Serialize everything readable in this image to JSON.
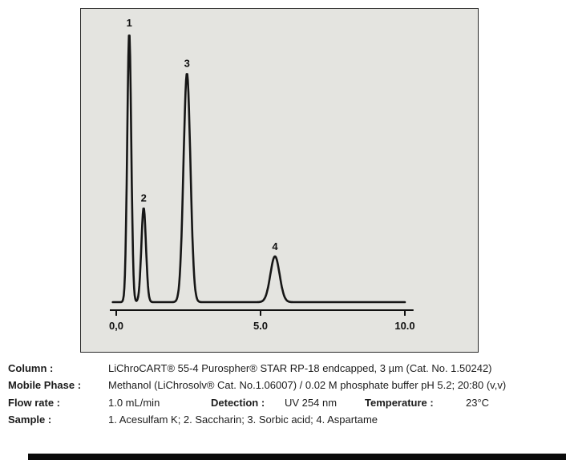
{
  "chart_data": {
    "type": "line",
    "title": "",
    "xlabel": "",
    "ylabel": "",
    "grid": false,
    "legend": false,
    "xlim": [
      0,
      10.3
    ],
    "ylim_relative": [
      0,
      1.05
    ],
    "x_ticks": [
      {
        "value": 0,
        "label": "0,0"
      },
      {
        "value": 5,
        "label": "5.0"
      },
      {
        "value": 10,
        "label": "10.0"
      }
    ],
    "trace_color": "#161616",
    "peaks": [
      {
        "label": "1",
        "compound": "Acesulfam K",
        "retention_min": 0.45,
        "rel_height": 1.0,
        "sigma_min": 0.07
      },
      {
        "label": "2",
        "compound": "Saccharin",
        "retention_min": 0.95,
        "rel_height": 0.35,
        "sigma_min": 0.08
      },
      {
        "label": "3",
        "compound": "Sorbic acid",
        "retention_min": 2.45,
        "rel_height": 0.85,
        "sigma_min": 0.12
      },
      {
        "label": "4",
        "compound": "Aspartame",
        "retention_min": 5.5,
        "rel_height": 0.17,
        "sigma_min": 0.16
      }
    ]
  },
  "conditions": {
    "column": {
      "label": "Column :",
      "value": "LiChroCART® 55-4 Purospher® STAR RP-18 endcapped, 3 µm  (Cat. No. 1.50242)"
    },
    "mobile_phase": {
      "label": "Mobile Phase :",
      "value": "Methanol (LiChrosolv® Cat. No.1.06007) / 0.02 M phosphate buffer pH 5.2; 20:80 (v,v)"
    },
    "flow_rate": {
      "label": "Flow rate :",
      "value": "1.0 mL/min"
    },
    "detection": {
      "label": "Detection :",
      "value": "UV 254 nm"
    },
    "temperature": {
      "label": "Temperature :",
      "value": "23°C"
    },
    "sample": {
      "label": "Sample :",
      "value": "1. Acesulfam K; 2. Saccharin; 3. Sorbic acid; 4. Aspartame"
    }
  }
}
